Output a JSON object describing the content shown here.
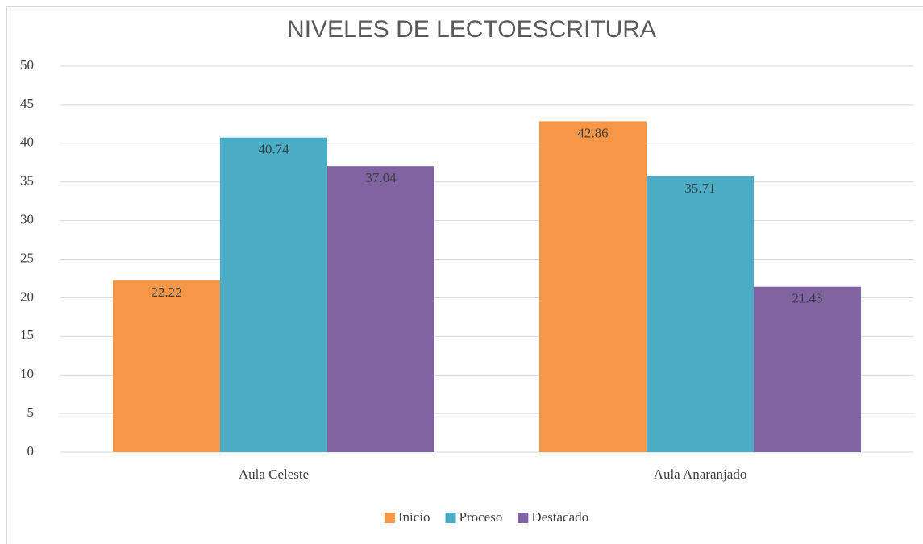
{
  "chart_data": {
    "type": "bar",
    "title": "NIVELES DE LECTOESCRITURA",
    "categories": [
      "Aula Celeste",
      "Aula Anaranjado"
    ],
    "series": [
      {
        "name": "Inicio",
        "color": "#f79646",
        "values": [
          22.22,
          42.86
        ]
      },
      {
        "name": "Proceso",
        "color": "#4bacc6",
        "values": [
          40.74,
          35.71
        ]
      },
      {
        "name": "Destacado",
        "color": "#8064a2",
        "values": [
          37.04,
          21.43
        ]
      }
    ],
    "ylim": [
      0,
      50
    ],
    "yticks": [
      0,
      5,
      10,
      15,
      20,
      25,
      30,
      35,
      40,
      45,
      50
    ],
    "grid": true,
    "legend": "bottom"
  }
}
